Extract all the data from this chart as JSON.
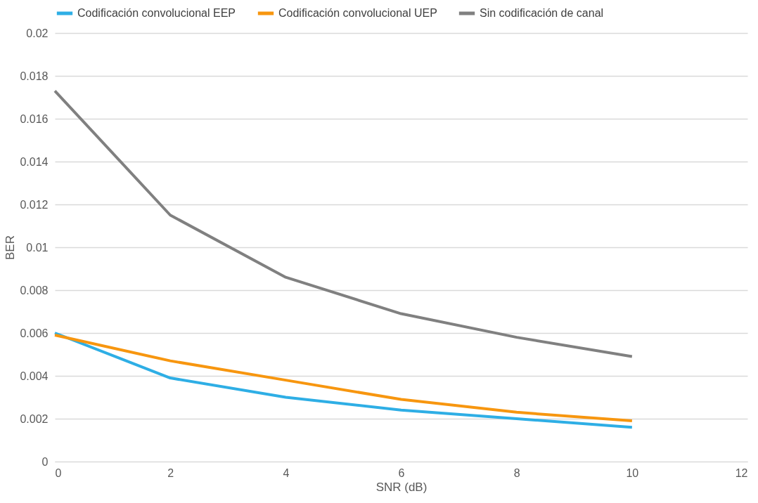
{
  "chart_data": {
    "type": "line",
    "xlabel": "SNR (dB)",
    "ylabel": "BER",
    "x": [
      0,
      2,
      4,
      6,
      8,
      10
    ],
    "series": [
      {
        "name": "Codificación convolucional EEP",
        "color": "#2eaee5",
        "values": [
          0.006,
          0.0039,
          0.003,
          0.0024,
          0.002,
          0.0016
        ]
      },
      {
        "name": "Codificación convolucional UEP",
        "color": "#f7960f",
        "values": [
          0.0059,
          0.0047,
          0.0038,
          0.0029,
          0.0023,
          0.0019
        ]
      },
      {
        "name": "Sin codificación de canal",
        "color": "#808080",
        "values": [
          0.0173,
          0.0115,
          0.0086,
          0.0069,
          0.0058,
          0.0049
        ]
      }
    ],
    "xlim": [
      0,
      12
    ],
    "xticks": [
      0,
      2,
      4,
      6,
      8,
      10,
      12
    ],
    "ylim": [
      0,
      0.02
    ],
    "yticks": [
      0,
      0.002,
      0.004,
      0.006,
      0.008,
      0.01,
      0.012,
      0.014,
      0.016,
      0.018,
      0.02
    ],
    "grid": "y",
    "legend": "top",
    "marker": "none",
    "line_style": "solid"
  }
}
